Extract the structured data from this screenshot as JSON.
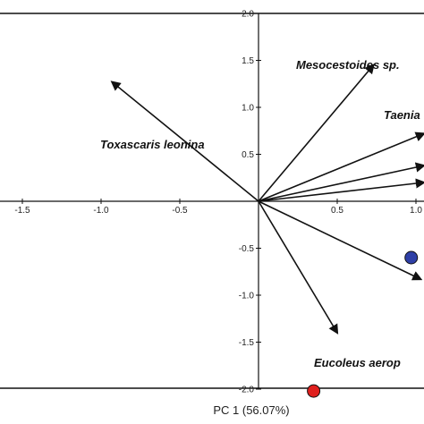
{
  "chart_data": {
    "type": "scatter",
    "title": "",
    "xlabel": "PC 1 (56.07%)",
    "ylabel": "",
    "xlim": [
      -1.6,
      1.05
    ],
    "ylim": [
      -2.1,
      2.1
    ],
    "x_ticks": [
      {
        "value": -1.5,
        "label": "-1.5"
      },
      {
        "value": -1.0,
        "label": "-1.0"
      },
      {
        "value": -0.5,
        "label": "-0.5"
      },
      {
        "value": 0.5,
        "label": "0.5"
      },
      {
        "value": 1.0,
        "label": "1.0"
      }
    ],
    "y_ticks": [
      {
        "value": 2.0,
        "label": "2.0"
      },
      {
        "value": 1.5,
        "label": "1.5"
      },
      {
        "value": 1.0,
        "label": "1.0"
      },
      {
        "value": 0.5,
        "label": "0.5"
      },
      {
        "value": -0.5,
        "label": "-0.5"
      },
      {
        "value": -1.0,
        "label": "-1.0"
      },
      {
        "value": -1.5,
        "label": "-1.5"
      },
      {
        "value": -2.0,
        "label": "-2.0"
      }
    ],
    "vectors": [
      {
        "name": "Toxascaris leonina",
        "x": -0.93,
        "y": 1.27
      },
      {
        "name": "Mesocestoides sp.",
        "x": 0.73,
        "y": 1.45
      },
      {
        "name": "Taenia",
        "x": 1.05,
        "y": 0.72
      },
      {
        "name": "",
        "x": 1.05,
        "y": 0.38
      },
      {
        "name": "",
        "x": 1.05,
        "y": 0.2
      },
      {
        "name": "",
        "x": 1.03,
        "y": -0.83
      },
      {
        "name": "Eucoleus aerop",
        "x": 0.5,
        "y": -1.4
      }
    ],
    "points": [
      {
        "x": 0.97,
        "y": -0.6,
        "color": "#2e3fa6"
      },
      {
        "x": 0.35,
        "y": -2.02,
        "color": "#e0201e"
      }
    ],
    "grid": false
  }
}
